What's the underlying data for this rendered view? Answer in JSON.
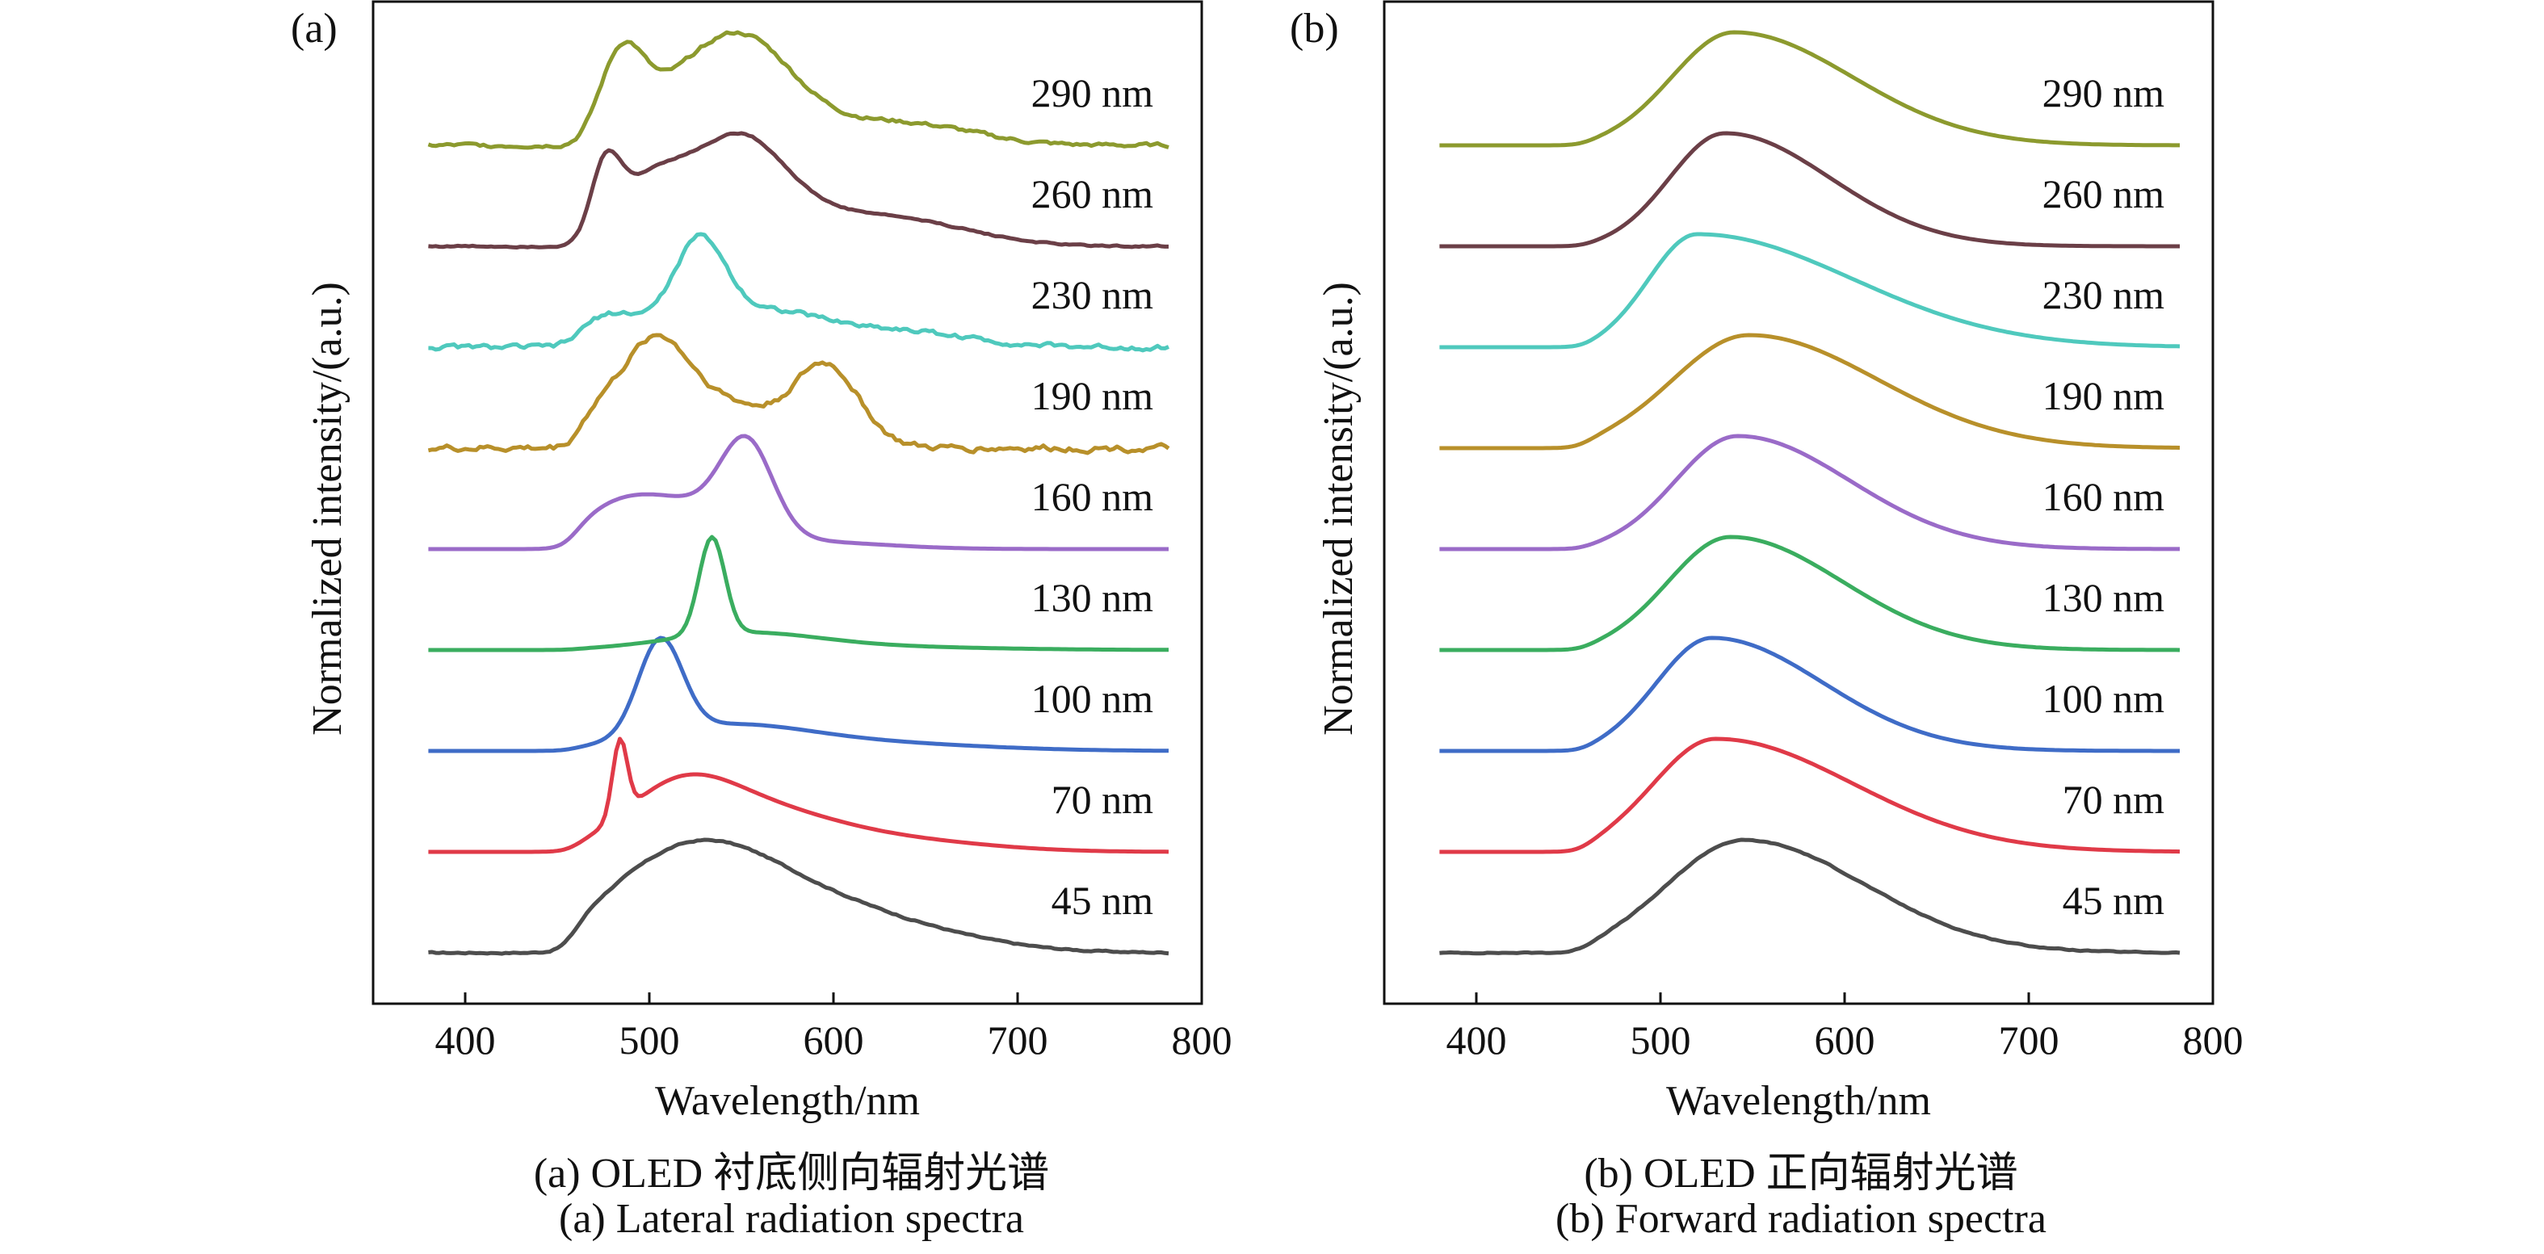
{
  "chart_data": [
    {
      "type": "line",
      "panel_label": "(a)",
      "xlabel": "Wavelength/nm",
      "ylabel": "Normalized intensity/(a.u.)",
      "xlim": [
        350,
        800
      ],
      "xticks": [
        400,
        500,
        600,
        700,
        800
      ],
      "y_scale": "offset stack, normalized (no y tick labels)",
      "grid": false,
      "caption_cn": "(a) OLED 衬底侧向辐射光谱",
      "caption_en": "(a) Lateral radiation spectra",
      "series": [
        {
          "name": "45 nm",
          "color": "#4d4d4d",
          "offset": 0.0,
          "noise": 0.012,
          "peaks": [
            [
              520,
              1.0,
              45
            ],
            [
              580,
              0.45,
              55
            ],
            [
              640,
              0.12,
              50
            ]
          ]
        },
        {
          "name": "70 nm",
          "color": "#e03a48",
          "offset": 1.0,
          "noise": 0.0,
          "peaks": [
            [
              484,
              0.75,
              4
            ],
            [
              515,
              0.55,
              30
            ],
            [
              560,
              0.35,
              40
            ],
            [
              630,
              0.12,
              50
            ]
          ]
        },
        {
          "name": "100 nm",
          "color": "#3f6cc7",
          "offset": 2.0,
          "noise": 0.0,
          "peaks": [
            [
              506,
              1.0,
              12
            ],
            [
              540,
              0.25,
              45
            ],
            [
              620,
              0.08,
              60
            ]
          ]
        },
        {
          "name": "130 nm",
          "color": "#3aad5f",
          "offset": 3.0,
          "noise": 0.0,
          "peaks": [
            [
              534,
              1.0,
              7
            ],
            [
              550,
              0.15,
              40
            ],
            [
              600,
              0.04,
              70
            ]
          ]
        },
        {
          "name": "160 nm",
          "color": "#9a6bc8",
          "offset": 4.0,
          "noise": 0.0,
          "peaks": [
            [
              480,
              0.3,
              25
            ],
            [
              520,
              0.35,
              30
            ],
            [
              553,
              0.8,
              14
            ],
            [
              590,
              0.06,
              40
            ]
          ]
        },
        {
          "name": "190 nm",
          "color": "#b8902a",
          "offset": 5.0,
          "noise": 0.04,
          "peaks": [
            [
              502,
              0.9,
              18
            ],
            [
              540,
              0.4,
              25
            ],
            [
              596,
              0.75,
              18
            ],
            [
              470,
              0.25,
              12
            ]
          ]
        },
        {
          "name": "230 nm",
          "color": "#4fc9bd",
          "offset": 6.0,
          "noise": 0.035,
          "peaks": [
            [
              527,
              0.95,
              14
            ],
            [
              480,
              0.35,
              20
            ],
            [
              560,
              0.35,
              30
            ],
            [
              630,
              0.18,
              40
            ]
          ]
        },
        {
          "name": "260 nm",
          "color": "#6b3f47",
          "offset": 7.0,
          "noise": 0.01,
          "peaks": [
            [
              476,
              0.6,
              8
            ],
            [
              500,
              0.55,
              20
            ],
            [
              548,
              0.9,
              25
            ],
            [
              600,
              0.25,
              40
            ],
            [
              655,
              0.12,
              35
            ]
          ]
        },
        {
          "name": "290 nm",
          "color": "#8c9a2e",
          "offset": 8.0,
          "noise": 0.03,
          "peaks": [
            [
              485,
              0.95,
              12
            ],
            [
              520,
              0.6,
              25
            ],
            [
              555,
              0.95,
              25
            ],
            [
              610,
              0.25,
              40
            ],
            [
              660,
              0.1,
              30
            ]
          ]
        }
      ]
    },
    {
      "type": "line",
      "panel_label": "(b)",
      "xlabel": "Wavelength/nm",
      "ylabel": "Normalized intensity/(a.u.)",
      "xlim": [
        350,
        800
      ],
      "xticks": [
        400,
        500,
        600,
        700,
        800
      ],
      "y_scale": "offset stack, normalized (no y tick labels)",
      "grid": false,
      "caption_cn": "(b) OLED 正向辐射光谱",
      "caption_en": "(b) Forward radiation spectra",
      "series": [
        {
          "name": "45 nm",
          "color": "#4d4d4d",
          "offset": 0.0,
          "noise": 0.006,
          "peaks": [
            [
              545,
              1.0,
              55,
              1.6
            ]
          ]
        },
        {
          "name": "70 nm",
          "color": "#e03a48",
          "offset": 1.0,
          "noise": 0.0,
          "peaks": [
            [
              530,
              1.0,
              45,
              2.2
            ]
          ]
        },
        {
          "name": "100 nm",
          "color": "#3f6cc7",
          "offset": 2.0,
          "noise": 0.0,
          "peaks": [
            [
              528,
              1.0,
              40,
              2.0
            ]
          ]
        },
        {
          "name": "130 nm",
          "color": "#3aad5f",
          "offset": 3.0,
          "noise": 0.0,
          "peaks": [
            [
              538,
              1.0,
              45,
              1.8
            ]
          ]
        },
        {
          "name": "160 nm",
          "color": "#9a6bc8",
          "offset": 4.0,
          "noise": 0.0,
          "peaks": [
            [
              542,
              1.0,
              45,
              1.8
            ]
          ]
        },
        {
          "name": "190 nm",
          "color": "#b8902a",
          "offset": 5.0,
          "noise": 0.0,
          "peaks": [
            [
              548,
              1.0,
              55,
              1.7
            ]
          ]
        },
        {
          "name": "230 nm",
          "color": "#4fc9bd",
          "offset": 6.0,
          "noise": 0.0,
          "peaks": [
            [
              520,
              1.0,
              35,
              3.2
            ]
          ]
        },
        {
          "name": "260 nm",
          "color": "#6b3f47",
          "offset": 7.0,
          "noise": 0.0,
          "peaks": [
            [
              535,
              1.0,
              40,
              1.9
            ]
          ]
        },
        {
          "name": "290 nm",
          "color": "#8c9a2e",
          "offset": 8.0,
          "noise": 0.0,
          "peaks": [
            [
              540,
              1.0,
              45,
              1.9
            ]
          ]
        }
      ]
    }
  ]
}
